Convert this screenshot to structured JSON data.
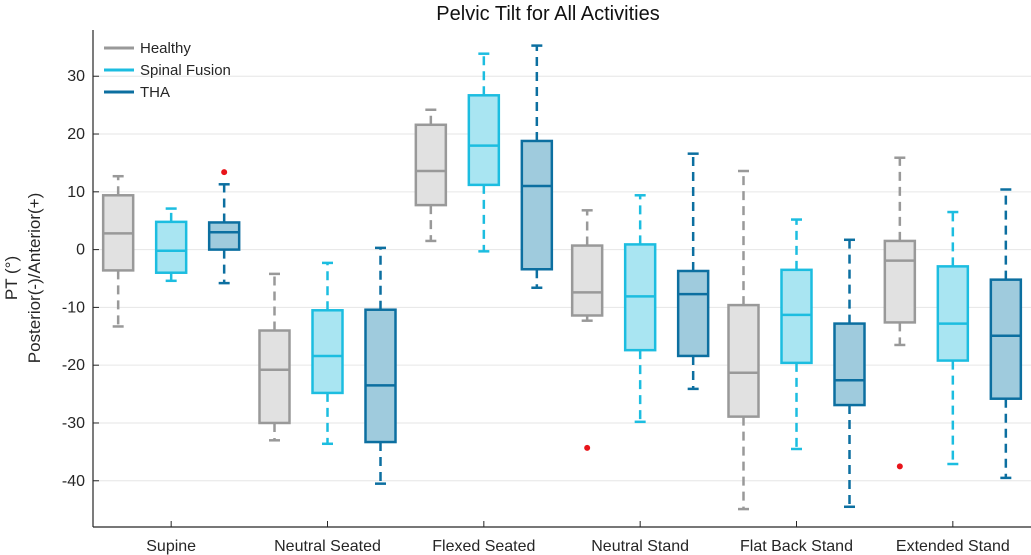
{
  "chart_data": {
    "type": "box",
    "title": "Pelvic Tilt for All Activities",
    "xlabel": "",
    "ylabel_line1": "PT (°)",
    "ylabel_line2": "Posterior(-)/Anterior(+)",
    "ylim": [
      -48,
      38
    ],
    "yticks": [
      -40,
      -30,
      -20,
      -10,
      0,
      10,
      20,
      30
    ],
    "ytick_labels": [
      "-40",
      "-30",
      "-20",
      "-10",
      "0",
      "10",
      "20",
      "30"
    ],
    "grid": true,
    "legend_position": "top-left",
    "categories": [
      "Supine",
      "Neutral Seated",
      "Flexed Seated",
      "Neutral Stand",
      "Flat Back Stand",
      "Extended Stand"
    ],
    "series": [
      {
        "name": "Healthy",
        "stroke": "#999999",
        "fill": "#e1e1e1",
        "boxes": [
          {
            "whisker_low": -13.3,
            "q1": -3.6,
            "median": 2.8,
            "q3": 9.4,
            "whisker_high": 12.7,
            "outliers": []
          },
          {
            "whisker_low": -33.0,
            "q1": -30.0,
            "median": -20.8,
            "q3": -14.0,
            "whisker_high": -4.2,
            "outliers": []
          },
          {
            "whisker_low": 1.5,
            "q1": 7.7,
            "median": 13.6,
            "q3": 21.6,
            "whisker_high": 24.2,
            "outliers": []
          },
          {
            "whisker_low": -12.3,
            "q1": -11.4,
            "median": -7.4,
            "q3": 0.7,
            "whisker_high": 6.8,
            "outliers": [
              -34.3
            ]
          },
          {
            "whisker_low": -44.9,
            "q1": -28.9,
            "median": -21.3,
            "q3": -9.6,
            "whisker_high": 13.6,
            "outliers": []
          },
          {
            "whisker_low": -16.5,
            "q1": -12.6,
            "median": -1.9,
            "q3": 1.5,
            "whisker_high": 15.9,
            "outliers": [
              -37.5
            ]
          }
        ]
      },
      {
        "name": "Spinal Fusion",
        "stroke": "#1cbde0",
        "fill": "#a9e5f2",
        "boxes": [
          {
            "whisker_low": -5.4,
            "q1": -4.0,
            "median": -0.2,
            "q3": 4.8,
            "whisker_high": 7.1,
            "outliers": []
          },
          {
            "whisker_low": -33.6,
            "q1": -24.8,
            "median": -18.4,
            "q3": -10.5,
            "whisker_high": -2.3,
            "outliers": []
          },
          {
            "whisker_low": -0.3,
            "q1": 11.2,
            "median": 18.0,
            "q3": 26.7,
            "whisker_high": 33.9,
            "outliers": []
          },
          {
            "whisker_low": -29.8,
            "q1": -17.4,
            "median": -8.1,
            "q3": 0.9,
            "whisker_high": 9.4,
            "outliers": []
          },
          {
            "whisker_low": -34.5,
            "q1": -19.6,
            "median": -11.3,
            "q3": -3.5,
            "whisker_high": 5.2,
            "outliers": []
          },
          {
            "whisker_low": -37.1,
            "q1": -19.2,
            "median": -12.8,
            "q3": -2.9,
            "whisker_high": 6.5,
            "outliers": []
          }
        ]
      },
      {
        "name": "THA",
        "stroke": "#0c6fa0",
        "fill": "#9fcbdd",
        "boxes": [
          {
            "whisker_low": -5.8,
            "q1": 0.0,
            "median": 3.0,
            "q3": 4.7,
            "whisker_high": 11.3,
            "outliers": [
              13.4
            ]
          },
          {
            "whisker_low": -40.5,
            "q1": -33.3,
            "median": -23.5,
            "q3": -10.4,
            "whisker_high": 0.3,
            "outliers": []
          },
          {
            "whisker_low": -6.6,
            "q1": -3.4,
            "median": 11.0,
            "q3": 18.8,
            "whisker_high": 35.3,
            "outliers": []
          },
          {
            "whisker_low": -24.1,
            "q1": -18.4,
            "median": -7.7,
            "q3": -3.7,
            "whisker_high": 16.6,
            "outliers": []
          },
          {
            "whisker_low": -44.5,
            "q1": -26.9,
            "median": -22.6,
            "q3": -12.8,
            "whisker_high": 1.7,
            "outliers": []
          },
          {
            "whisker_low": -39.5,
            "q1": -25.8,
            "median": -14.9,
            "q3": -5.2,
            "whisker_high": 10.4,
            "outliers": []
          }
        ]
      }
    ],
    "outlier_color": "#e8141a",
    "axis_color": "#262626",
    "grid_color": "#e6e6e6"
  }
}
